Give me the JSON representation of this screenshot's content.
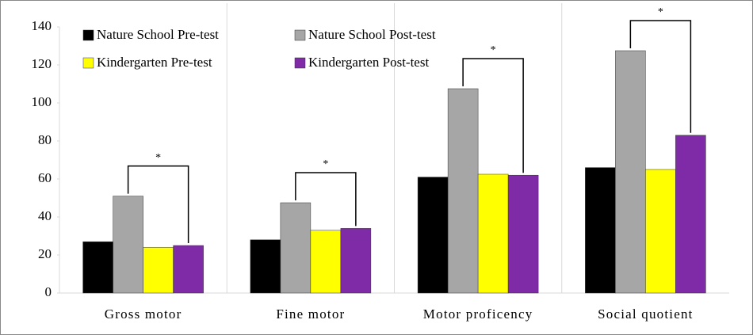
{
  "chart_data": {
    "type": "bar",
    "categories": [
      "Gross motor",
      "Fine motor",
      "Motor proficency",
      "Social quotient"
    ],
    "series": [
      {
        "name": "Nature School Pre-test",
        "color": "#000000",
        "values": [
          27,
          28,
          61,
          66
        ]
      },
      {
        "name": "Nature School Post-test",
        "color": "#a6a6a6",
        "values": [
          51,
          47.5,
          107.5,
          127.5
        ]
      },
      {
        "name": "Kindergarten Pre-test",
        "color": "#ffff00",
        "values": [
          24,
          33,
          62.5,
          65
        ]
      },
      {
        "name": "Kindergarten Post-test",
        "color": "#7f2aa6",
        "values": [
          25,
          34,
          62,
          83
        ]
      }
    ],
    "annotations": [
      "*",
      "*",
      "*",
      "*"
    ],
    "ylim": [
      0,
      140
    ],
    "yticks": [
      0,
      20,
      40,
      60,
      80,
      100,
      120,
      140
    ],
    "grid": false
  }
}
